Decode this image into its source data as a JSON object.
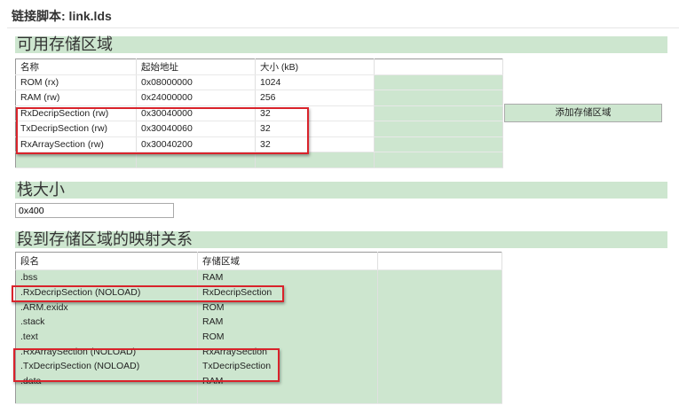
{
  "title": "链接脚本: link.lds",
  "memory": {
    "heading": "可用存储区域",
    "columns": [
      "名称",
      "起始地址",
      "大小 (kB)"
    ],
    "rows": [
      [
        "ROM (rx)",
        "0x08000000",
        "1024"
      ],
      [
        "RAM (rw)",
        "0x24000000",
        "256"
      ],
      [
        "RxDecripSection (rw)",
        "0x30040000",
        "32"
      ],
      [
        "TxDecripSection (rw)",
        "0x30040060",
        "32"
      ],
      [
        "RxArraySection (rw)",
        "0x30040200",
        "32"
      ]
    ],
    "add_button": "添加存储区域",
    "highlighted_rows": [
      2,
      3,
      4
    ]
  },
  "stack": {
    "heading": "栈大小",
    "value": "0x400"
  },
  "mapping": {
    "heading": "段到存储区域的映射关系",
    "columns": [
      "段名",
      "存储区域"
    ],
    "rows": [
      [
        ".bss",
        "RAM"
      ],
      [
        ".RxDecripSection (NOLOAD)",
        "RxDecripSection"
      ],
      [
        ".ARM.exidx",
        "ROM"
      ],
      [
        ".stack",
        "RAM"
      ],
      [
        ".text",
        "ROM"
      ],
      [
        ".RxArraySection (NOLOAD)",
        "RxArraySection"
      ],
      [
        ".TxDecripSection (NOLOAD)",
        "TxDecripSection"
      ],
      [
        ".data",
        "RAM"
      ]
    ],
    "highlighted_rows": [
      1,
      5,
      6
    ]
  },
  "colors": {
    "band": "#cde6cf",
    "highlight": "#d9232b"
  }
}
